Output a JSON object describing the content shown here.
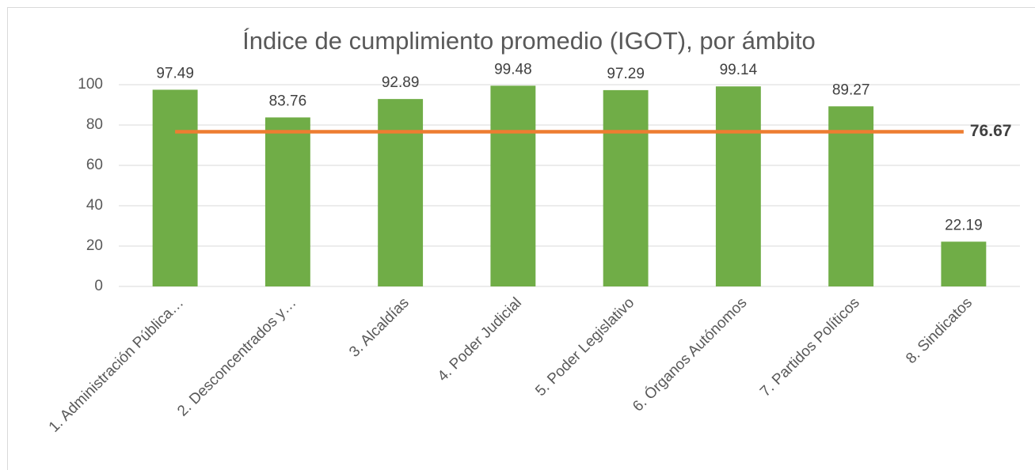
{
  "chart_data": {
    "type": "bar",
    "title": "Índice de cumplimiento promedio (IGOT), por ámbito",
    "categories": [
      "1. Administración Pública…",
      "2. Desconcentrados y…",
      "3. Alcaldías",
      "4. Poder Judicial",
      "5. Poder Legislativo",
      "6. Órganos Autónomos",
      "7. Partidos Políticos",
      "8. Sindicatos"
    ],
    "values": [
      97.49,
      83.76,
      92.89,
      99.48,
      97.29,
      99.14,
      89.27,
      22.19
    ],
    "color": "#70ad47",
    "reference_line": {
      "value": 76.67,
      "color": "#ed7d31"
    },
    "ylim": [
      0,
      100
    ],
    "yticks": [
      0,
      20,
      40,
      60,
      80,
      100
    ],
    "grid": true
  }
}
